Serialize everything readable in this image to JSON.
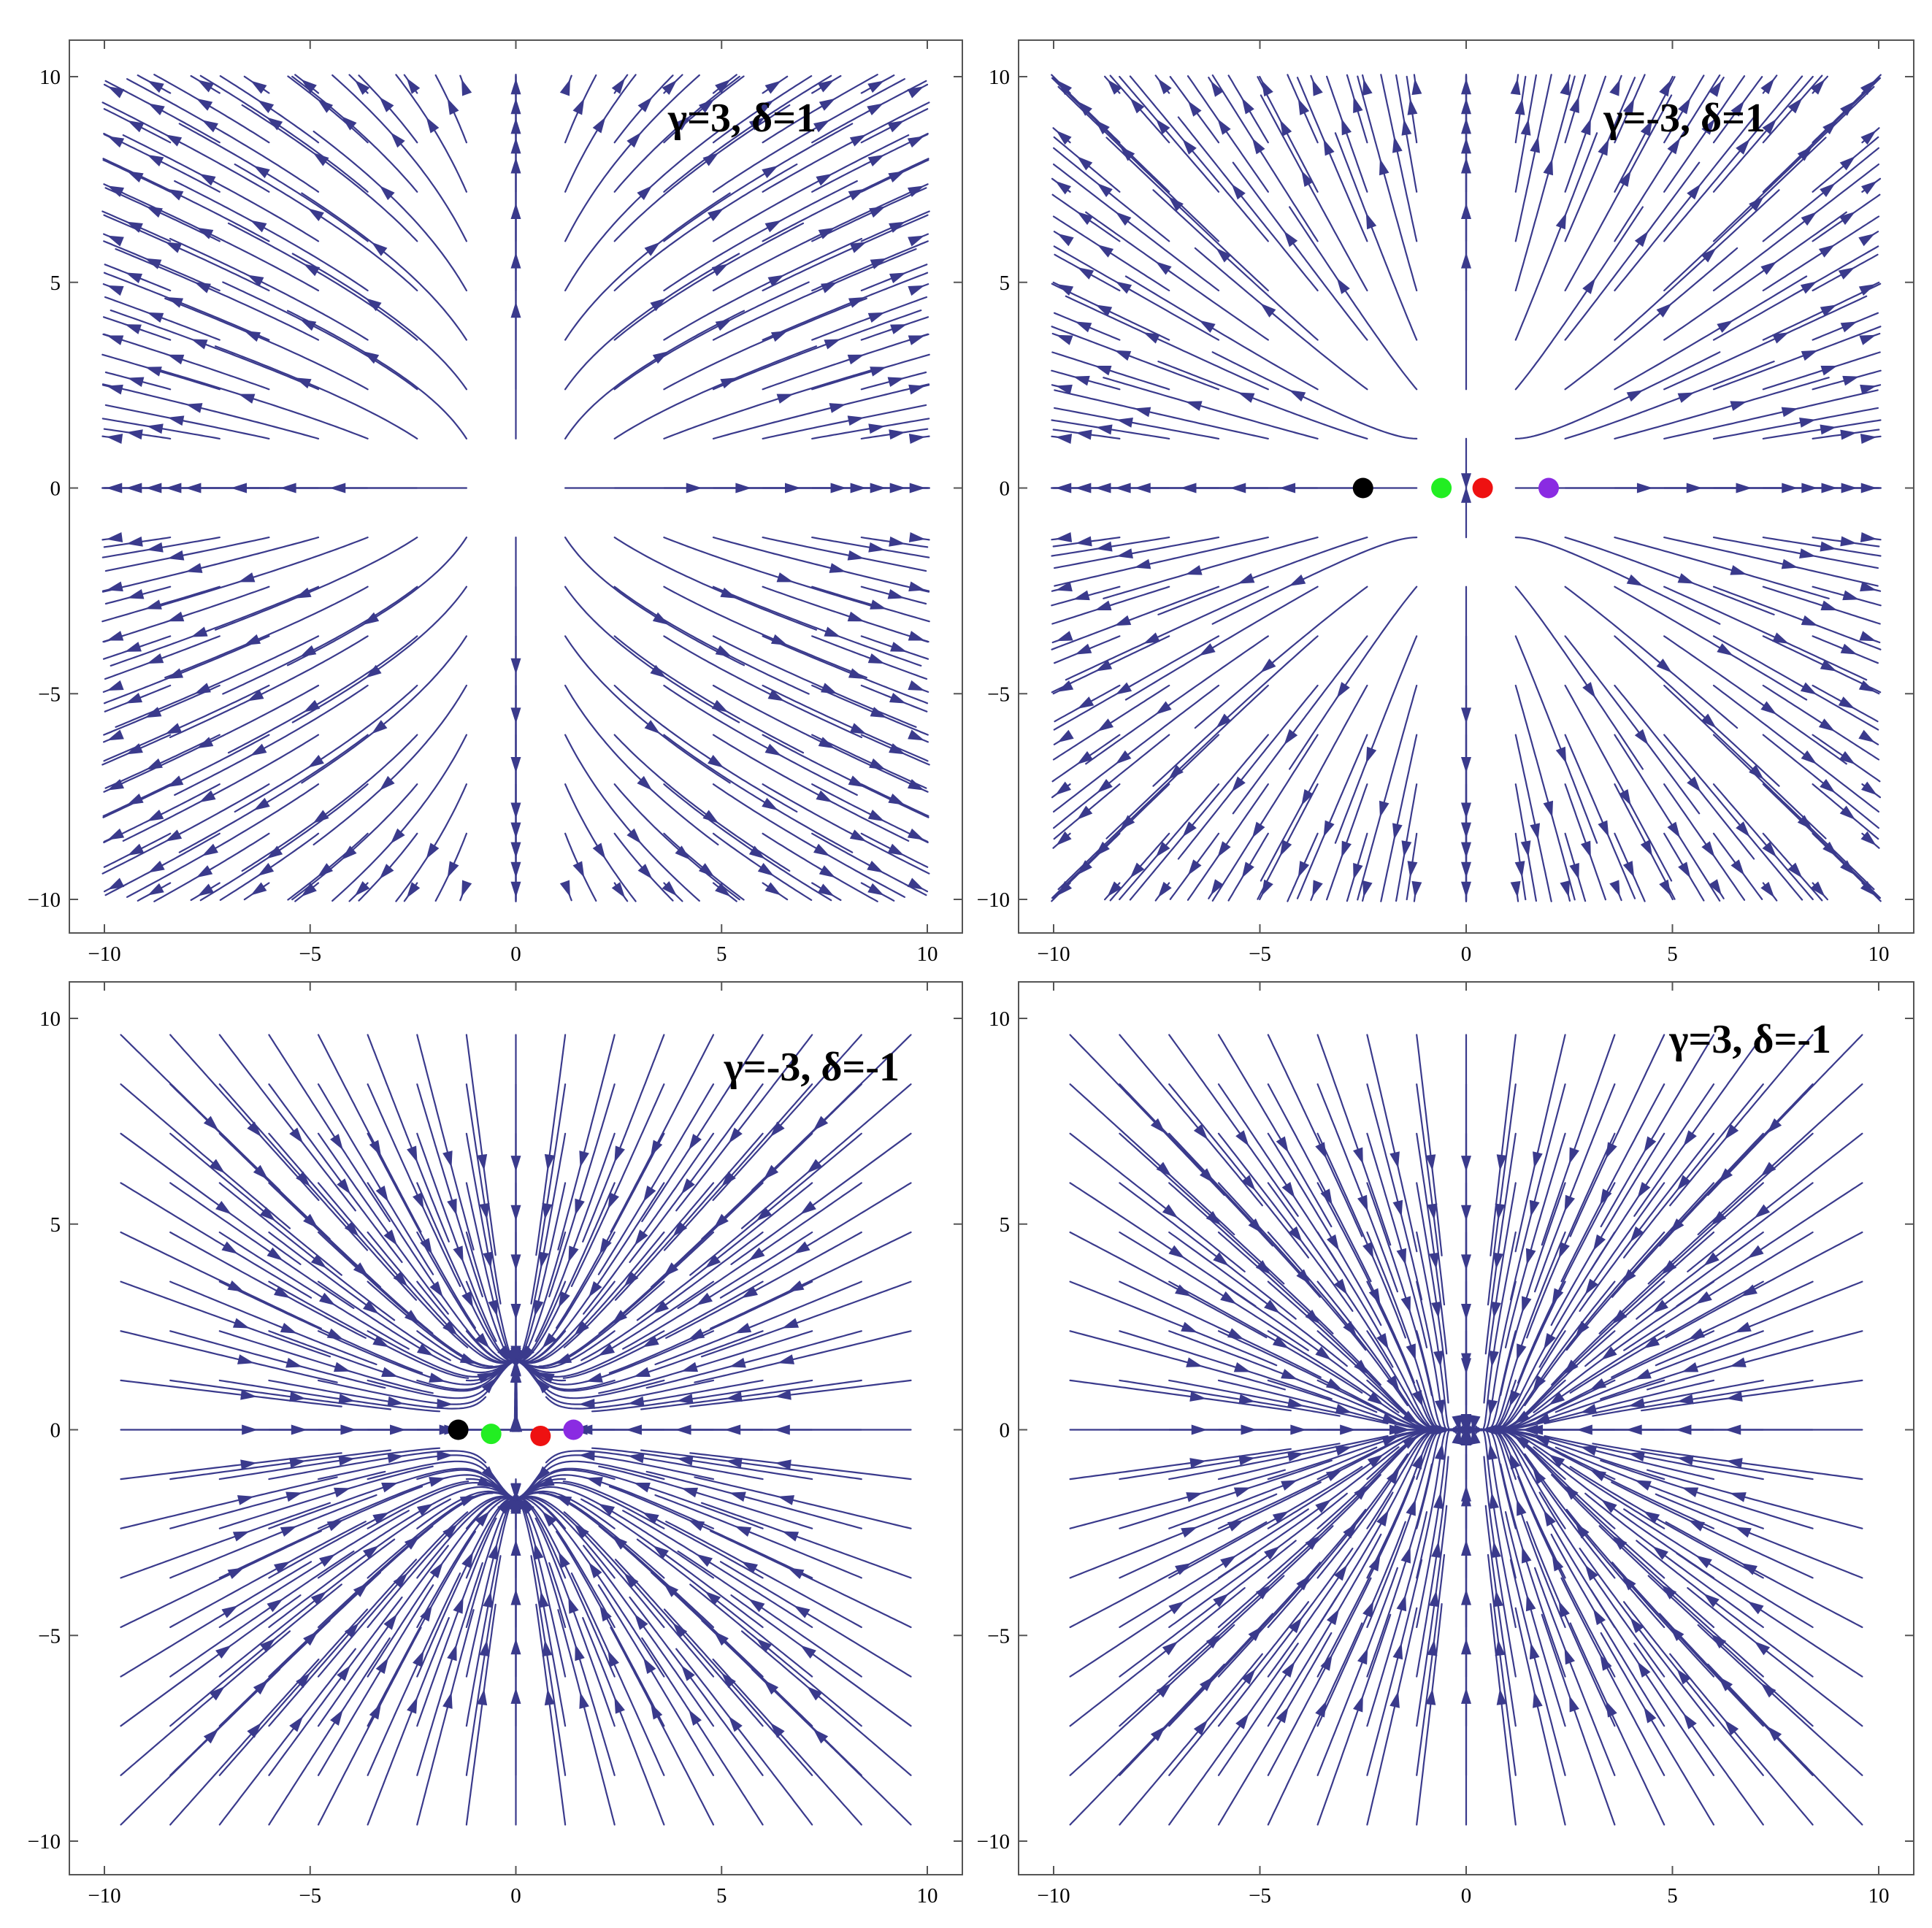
{
  "chart_data": [
    {
      "type": "streamplot",
      "label": "γ=3, δ=1",
      "params": {
        "gamma": 3,
        "delta": 1
      },
      "xlim": [
        -10,
        10
      ],
      "ylim": [
        -10,
        10
      ],
      "xticks": [
        -10,
        -5,
        0,
        5,
        10
      ],
      "yticks": [
        -10,
        -5,
        0,
        5,
        10
      ],
      "xtick_labels": [
        "−10",
        "−5",
        "0",
        "5",
        "10"
      ],
      "ytick_labels": [
        "−10",
        "−5",
        "0",
        "5",
        "10"
      ],
      "stream_color": "#3a3a8c",
      "fixed_points": []
    },
    {
      "type": "streamplot",
      "label": "γ=-3, δ=1",
      "params": {
        "gamma": -3,
        "delta": 1
      },
      "xlim": [
        -10,
        10
      ],
      "ylim": [
        -10,
        10
      ],
      "xticks": [
        -10,
        -5,
        0,
        5,
        10
      ],
      "yticks": [
        -10,
        -5,
        0,
        5,
        10
      ],
      "xtick_labels": [
        "−10",
        "−5",
        "0",
        "5",
        "10"
      ],
      "ytick_labels": [
        "−10",
        "−5",
        "0",
        "5",
        "10"
      ],
      "stream_color": "#3a3a8c",
      "fixed_points": [
        {
          "x": -2.5,
          "y": 0,
          "color": "#000000"
        },
        {
          "x": -0.6,
          "y": 0,
          "color": "#22ee22"
        },
        {
          "x": 0.4,
          "y": 0,
          "color": "#ee1111"
        },
        {
          "x": 2.0,
          "y": 0,
          "color": "#8a2be2"
        }
      ]
    },
    {
      "type": "streamplot",
      "label": "γ=-3, δ=-1",
      "params": {
        "gamma": -3,
        "delta": -1
      },
      "xlim": [
        -10,
        10
      ],
      "ylim": [
        -10,
        10
      ],
      "xticks": [
        -10,
        -5,
        0,
        5,
        10
      ],
      "yticks": [
        -10,
        -5,
        0,
        5,
        10
      ],
      "xtick_labels": [
        "−10",
        "−5",
        "0",
        "5",
        "10"
      ],
      "ytick_labels": [
        "−10",
        "−5",
        "0",
        "5",
        "10"
      ],
      "stream_color": "#3a3a8c",
      "fixed_points": [
        {
          "x": -1.4,
          "y": 0,
          "color": "#000000"
        },
        {
          "x": -0.6,
          "y": -0.1,
          "color": "#22ee22"
        },
        {
          "x": 0.6,
          "y": -0.15,
          "color": "#ee1111"
        },
        {
          "x": 1.4,
          "y": 0,
          "color": "#8a2be2"
        }
      ]
    },
    {
      "type": "streamplot",
      "label": "γ=3, δ=-1",
      "params": {
        "gamma": 3,
        "delta": -1
      },
      "xlim": [
        -10,
        10
      ],
      "ylim": [
        -10,
        10
      ],
      "xticks": [
        -10,
        -5,
        0,
        5,
        10
      ],
      "yticks": [
        -10,
        -5,
        0,
        5,
        10
      ],
      "xtick_labels": [
        "−10",
        "−5",
        "0",
        "5",
        "10"
      ],
      "ytick_labels": [
        "−10",
        "−5",
        "0",
        "5",
        "10"
      ],
      "stream_color": "#3a3a8c",
      "fixed_points": []
    }
  ]
}
